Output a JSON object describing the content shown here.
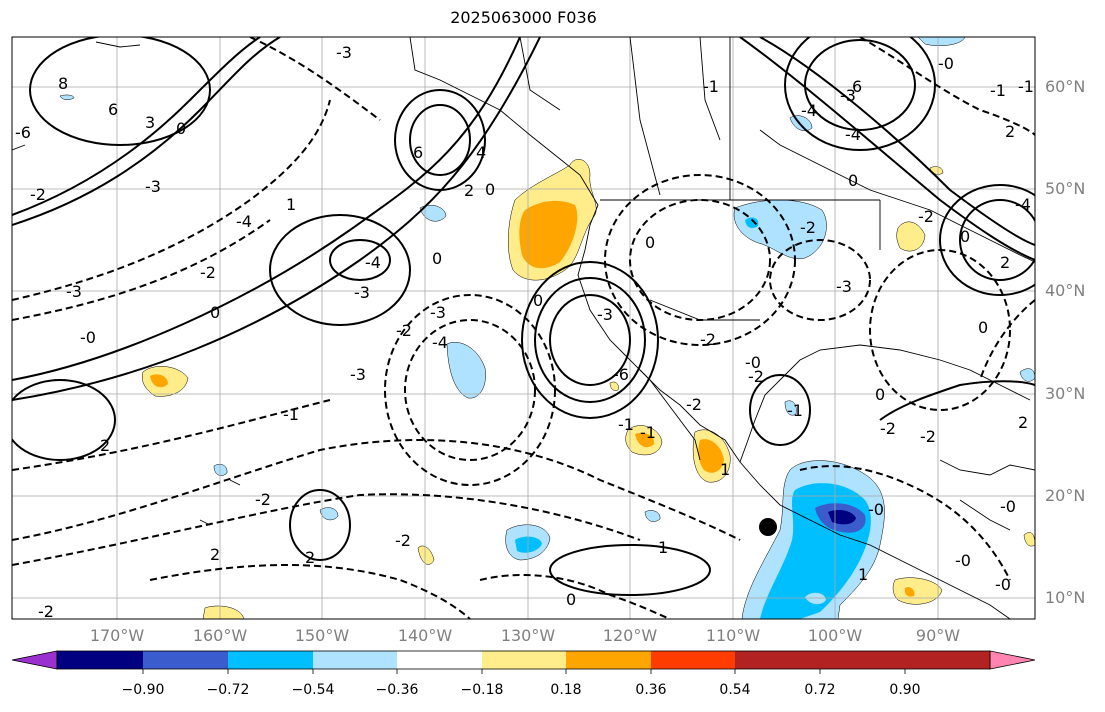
{
  "title": "2025063000 F036",
  "lat_labels": [
    "60°N",
    "50°N",
    "40°N",
    "30°N",
    "20°N",
    "10°N"
  ],
  "lon_labels": [
    "170°W",
    "160°W",
    "150°W",
    "140°W",
    "130°W",
    "120°W",
    "110°W",
    "100°W",
    "90°W"
  ],
  "colorbar": {
    "colors": [
      "#9b30d0",
      "#000080",
      "#3a5ccc",
      "#00bfff",
      "#aee2ff",
      "#ffffff",
      "#ffec8b",
      "#ffa500",
      "#ff3c00",
      "#b22222",
      "#ff85b0"
    ],
    "labels": [
      "−0.90",
      "−0.72",
      "−0.54",
      "−0.36",
      "−0.18",
      "0.18",
      "0.36",
      "0.54",
      "0.72",
      "0.90"
    ]
  },
  "contour_labels": [
    "-3",
    "8",
    "6",
    "-6",
    "3",
    "0",
    "-2",
    "-3",
    "-2",
    "0",
    "-0",
    "2",
    "-1",
    "6",
    "2",
    "-4",
    "-3",
    "-2",
    "0",
    "-3",
    "-4",
    "-3",
    "-6",
    "0",
    "1",
    "0",
    "2",
    "-2",
    "-2",
    "1",
    "-4",
    "-3",
    "0",
    "-1",
    "-2",
    "-2",
    "-0",
    "-0",
    "0",
    "2",
    "-3",
    "-0",
    "-1",
    "-3",
    "-4",
    "-4",
    "-2",
    "0",
    "2",
    "-0",
    "-1",
    "1",
    "1",
    "-0",
    "-2",
    "-1",
    "-0",
    "0",
    "6",
    "-1",
    "-4",
    "-2",
    "0",
    "2",
    "-2",
    "-2",
    "0",
    "-1",
    "-2",
    "2",
    "4",
    "-3"
  ],
  "marker": "storm-center"
}
